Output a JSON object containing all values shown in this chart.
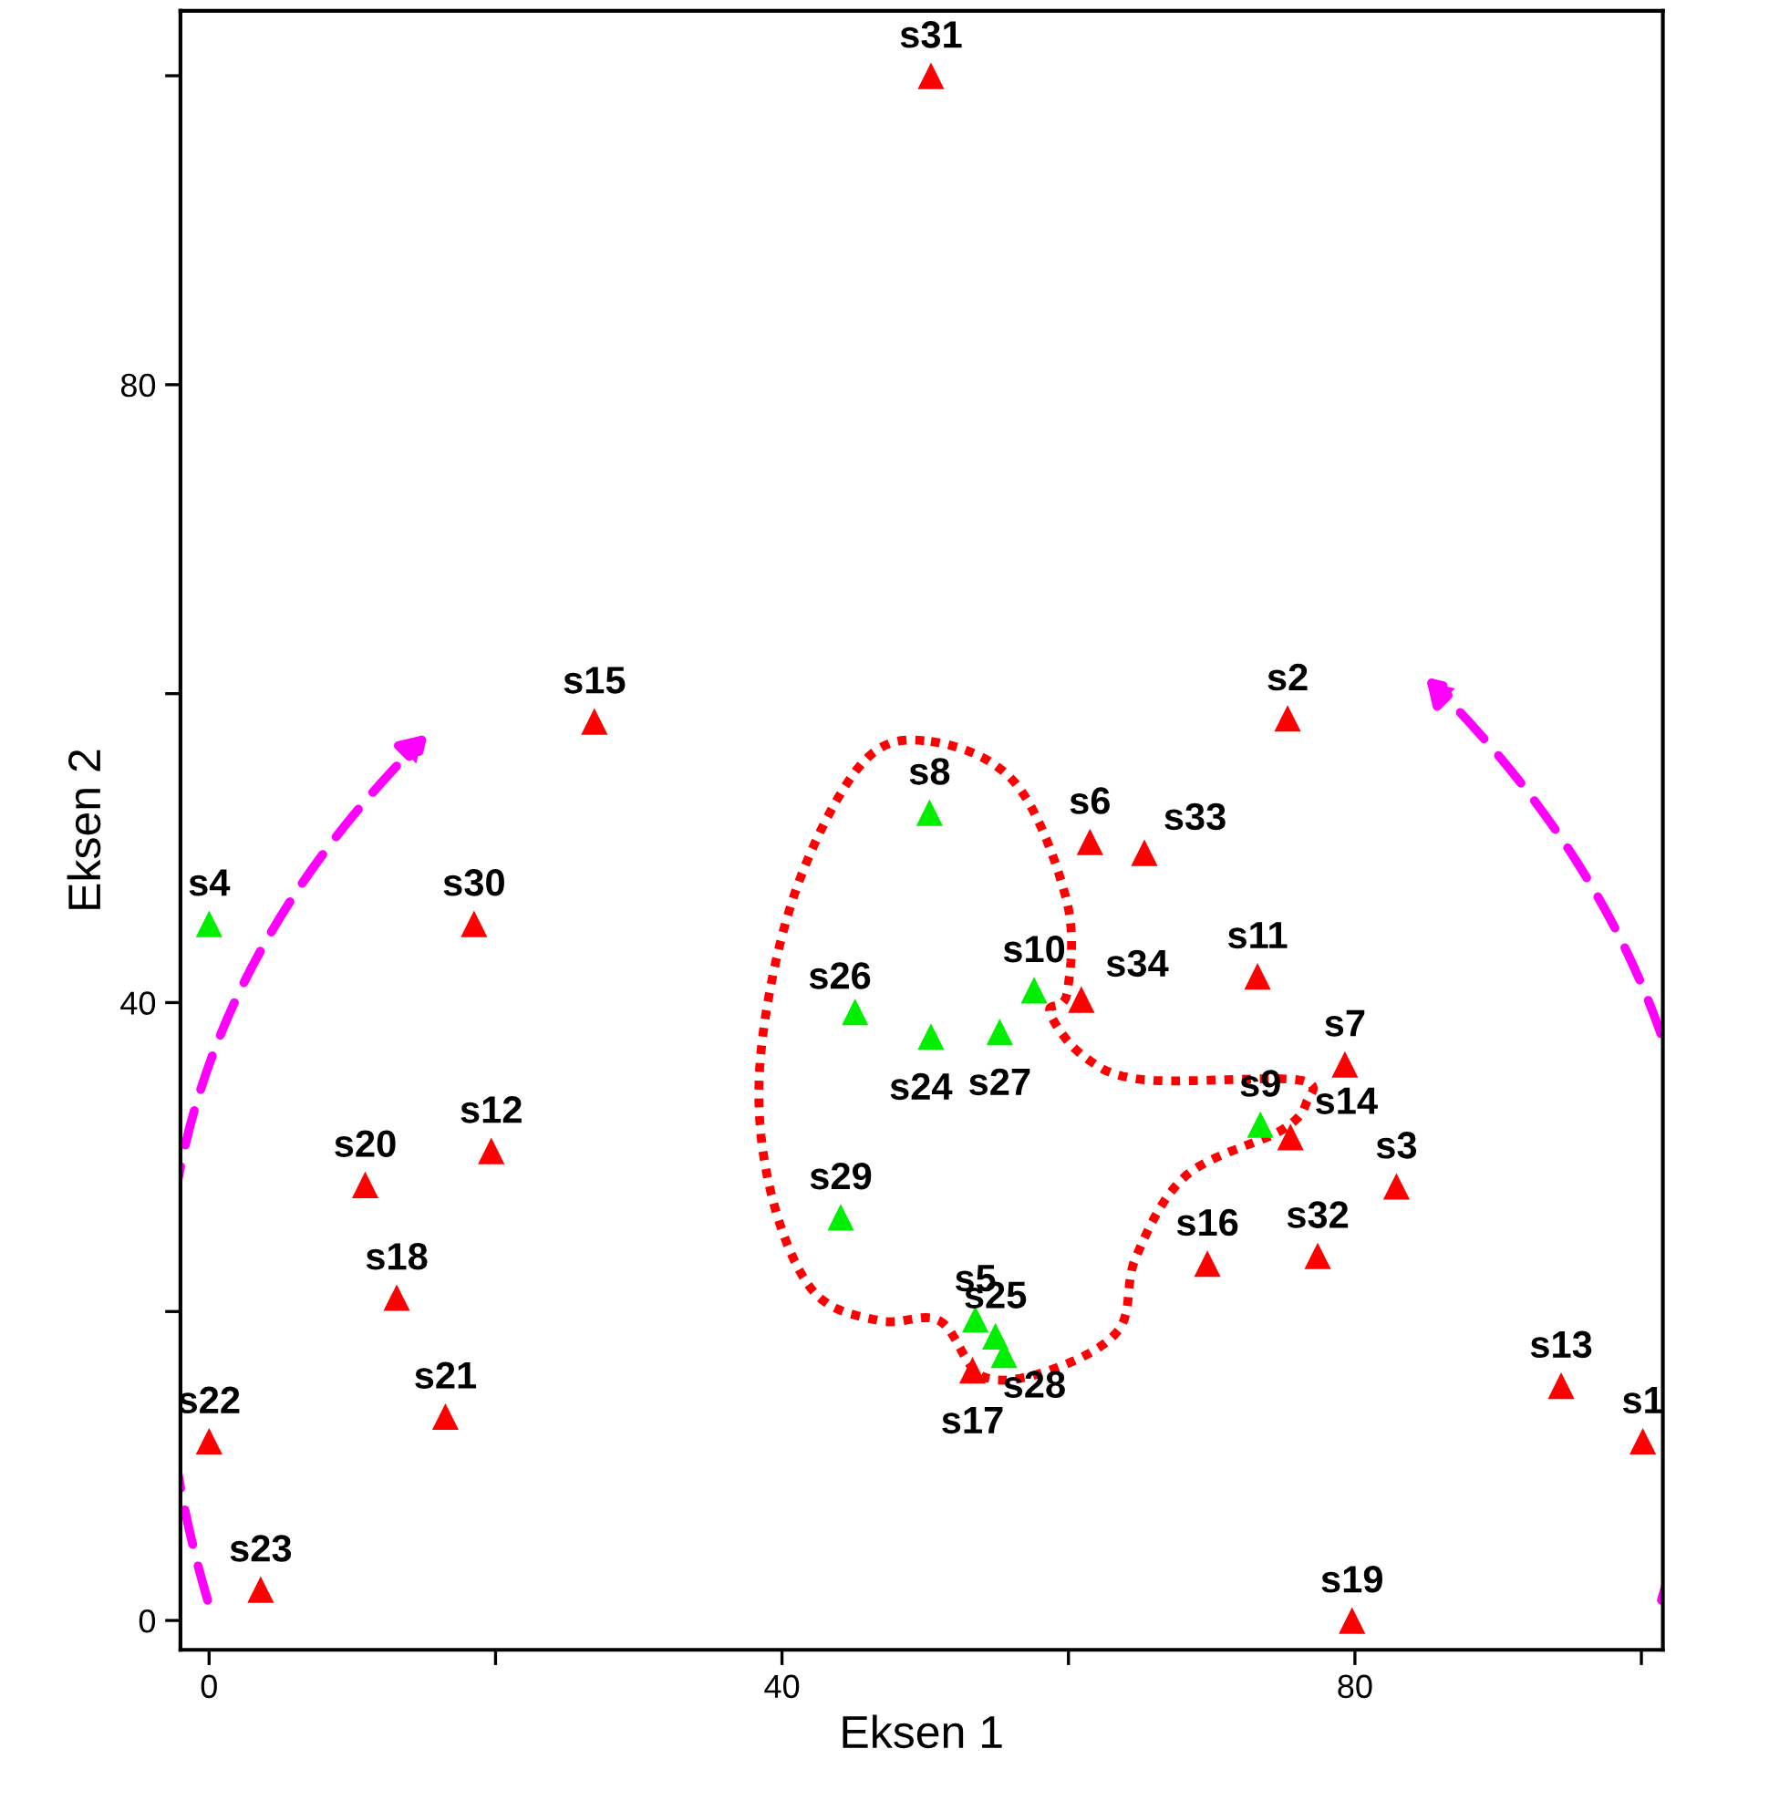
{
  "chart_data": {
    "type": "scatter",
    "xlabel": "Eksen 1",
    "ylabel": "Eksen 2",
    "xlim": [
      -2,
      101.5
    ],
    "ylim": [
      -1.9,
      104.2
    ],
    "xticks": [
      0,
      {
        "value": 20,
        "label": null
      },
      40,
      {
        "value": 60,
        "label": null
      },
      80,
      {
        "value": 100,
        "label": null
      }
    ],
    "yticks": [
      0,
      {
        "value": 20,
        "label": null
      },
      40,
      {
        "value": 60,
        "label": null
      },
      80,
      {
        "value": 100,
        "label": null
      }
    ],
    "marker": "triangle",
    "grid": false,
    "series": [
      {
        "color": "#ff0000",
        "x": [
          50.4,
          26.9,
          75.3,
          61.5,
          65.3,
          18.5,
          73.2,
          60.9,
          79.3,
          75.5,
          19.7,
          82.9,
          10.9,
          77.4,
          69.7,
          13.1,
          53.3,
          16.5,
          94.4,
          0,
          100.1,
          3.6,
          79.8
        ],
        "values": [
          100,
          58.2,
          58.4,
          50.4,
          49.7,
          45.1,
          41.7,
          40.2,
          36.0,
          31.3,
          30.4,
          28.1,
          28.2,
          23.6,
          23.1,
          20.9,
          16.2,
          13.2,
          15.2,
          11.6,
          11.6,
          2.0,
          0
        ],
        "value_labels": [
          "s31",
          "s15",
          "s2",
          "s6",
          "s33",
          "s30",
          "s11",
          "s34",
          "s7",
          "s14",
          "s12",
          "s3",
          "s20",
          "s32",
          "s16",
          "s18",
          "s17",
          "s21",
          "s13",
          "s22",
          "s1",
          "s23",
          "s19"
        ]
      },
      {
        "color": "#00ee00",
        "x": [
          50.3,
          0,
          57.6,
          45.1,
          50.4,
          55.2,
          73.4,
          44.1,
          53.5,
          54.9,
          55.5
        ],
        "values": [
          52.3,
          45.1,
          40.8,
          39.4,
          37.8,
          38.1,
          32.1,
          26.1,
          19.5,
          18.4,
          17.2
        ],
        "value_labels": [
          "s8",
          "s4",
          "s10",
          "s26",
          "s24",
          "s27",
          "s9",
          "s29",
          "s5",
          "s25",
          "s28"
        ]
      }
    ]
  }
}
